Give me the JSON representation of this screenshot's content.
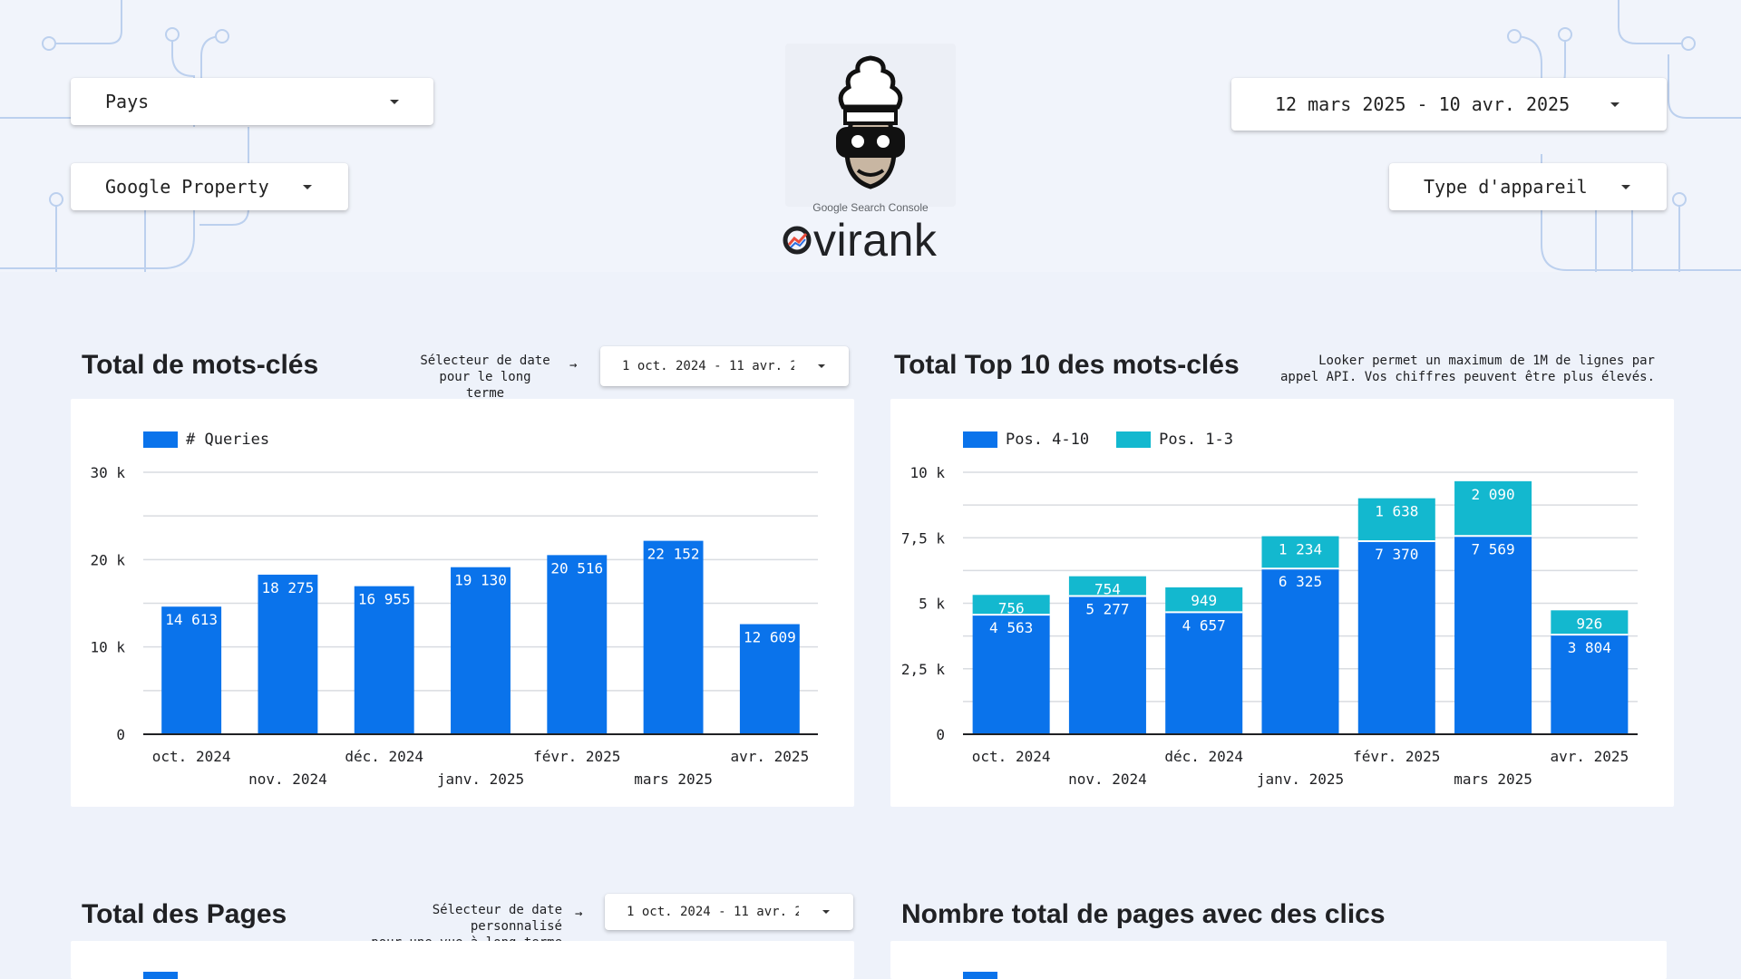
{
  "filters": {
    "country": "Pays",
    "property": "Google Property",
    "date_range": "12 mars 2025 - 10 avr. 2025",
    "device": "Type d'appareil"
  },
  "brand": {
    "product_label": "Google Search Console",
    "name": "virank"
  },
  "sections": {
    "keywords": {
      "title": "Total de mots-clés",
      "note_line1": "Sélecteur de date",
      "note_line2": "pour le long terme",
      "arrow": "→",
      "date_picker": "1 oct. 2024 - 11 avr. 2"
    },
    "top10": {
      "title": "Total Top 10 des mots-clés",
      "note_line1": "Looker permet un maximum de 1M de lignes par",
      "note_line2": "appel API. Vos chiffres peuvent être plus élevés."
    },
    "pages": {
      "title": "Total des Pages",
      "note_line1": "Sélecteur de date personnalisé",
      "note_line2": "pour une vue à long terme",
      "arrow": "→",
      "date_picker": "1 oct. 2024 - 11 avr. 2"
    },
    "pages_clicks": {
      "title": "Nombre total de pages avec des clics"
    }
  },
  "colors": {
    "primary_blue": "#0a73eb",
    "teal": "#13b8cf",
    "grid": "#d9dce1"
  },
  "chart_data": [
    {
      "type": "bar",
      "categories": [
        "oct. 2024",
        "nov. 2024",
        "déc. 2024",
        "janv. 2025",
        "févr. 2025",
        "mars 2025",
        "avr. 2025"
      ],
      "series": [
        {
          "name": "# Queries",
          "values": [
            14613,
            18275,
            16955,
            19130,
            20516,
            22152,
            12609
          ]
        }
      ],
      "value_labels": [
        "14 613",
        "18 275",
        "16 955",
        "19 130",
        "20 516",
        "22 152",
        "12 609"
      ],
      "ylim": [
        0,
        30000
      ],
      "yticks": [
        0,
        10000,
        20000,
        30000
      ],
      "ytick_labels": [
        "0",
        "10 k",
        "20 k",
        "30 k"
      ],
      "grid": true,
      "legend_position": "top-left"
    },
    {
      "type": "bar",
      "stacked": true,
      "categories": [
        "oct. 2024",
        "nov. 2024",
        "déc. 2024",
        "janv. 2025",
        "févr. 2025",
        "mars 2025",
        "avr. 2025"
      ],
      "series": [
        {
          "name": "Pos. 4-10",
          "values": [
            4563,
            5277,
            4657,
            6325,
            7370,
            7569,
            3804
          ],
          "value_labels": [
            "4 563",
            "5 277",
            "4 657",
            "6 325",
            "7 370",
            "7 569",
            "3 804"
          ]
        },
        {
          "name": "Pos. 1-3",
          "values": [
            756,
            754,
            949,
            1234,
            1638,
            2090,
            926
          ],
          "value_labels": [
            "756",
            "754",
            "949",
            "1 234",
            "1 638",
            "2 090",
            "926"
          ]
        }
      ],
      "ylim": [
        0,
        10000
      ],
      "yticks": [
        0,
        2500,
        5000,
        7500,
        10000
      ],
      "ytick_labels": [
        "0",
        "2,5 k",
        "5 k",
        "7,5 k",
        "10 k"
      ],
      "grid": true,
      "legend_position": "top-left"
    }
  ]
}
